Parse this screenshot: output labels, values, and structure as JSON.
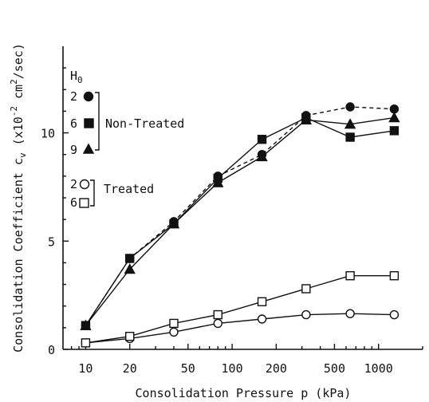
{
  "chart_data": {
    "type": "line",
    "x_scale": "log",
    "xlim": [
      7,
      2000
    ],
    "ylim": [
      0,
      14
    ],
    "xlabel": "Consolidation Pressure p (kPa)",
    "ylabel": {
      "prefix": "Consolidation Coefficient c",
      "subscript": "v",
      "unit_open": "(x10",
      "exp1": "-2",
      "unit_mid": " cm",
      "exp2": "2",
      "unit_close": "/sec)"
    },
    "x_ticks": [
      10,
      20,
      50,
      100,
      200,
      500,
      1000
    ],
    "x_tick_labels": [
      "10",
      "20",
      "50",
      "100",
      "200",
      "500",
      "1000"
    ],
    "y_ticks": [
      0,
      5,
      10
    ],
    "y_tick_labels": [
      "0",
      "5",
      "10"
    ],
    "legend": {
      "header_main": "H",
      "header_sub": "0",
      "group1_label": "Non-Treated",
      "group2_label": "Treated"
    },
    "series": [
      {
        "name": "2",
        "group": "Non-Treated",
        "marker": "circle",
        "filled": true,
        "dashed": true,
        "x": [
          10,
          20,
          40,
          80,
          160,
          320,
          640,
          1280
        ],
        "y": [
          1.1,
          4.2,
          5.9,
          8.0,
          9.0,
          10.8,
          11.2,
          11.1
        ]
      },
      {
        "name": "6",
        "group": "Non-Treated",
        "marker": "square",
        "filled": true,
        "dashed": false,
        "x": [
          10,
          20,
          40,
          80,
          160,
          320,
          640,
          1280
        ],
        "y": [
          1.1,
          4.2,
          5.8,
          7.9,
          9.7,
          10.7,
          9.8,
          10.1
        ]
      },
      {
        "name": "9",
        "group": "Non-Treated",
        "marker": "triangle",
        "filled": true,
        "dashed": false,
        "x": [
          10,
          20,
          40,
          80,
          160,
          320,
          640,
          1280
        ],
        "y": [
          1.1,
          3.7,
          5.8,
          7.7,
          8.9,
          10.6,
          10.4,
          10.7
        ]
      },
      {
        "name": "2",
        "group": "Treated",
        "marker": "circle",
        "filled": false,
        "dashed": false,
        "x": [
          10,
          20,
          40,
          80,
          160,
          320,
          640,
          1280
        ],
        "y": [
          0.3,
          0.5,
          0.8,
          1.2,
          1.4,
          1.6,
          1.65,
          1.6
        ]
      },
      {
        "name": "6",
        "group": "Treated",
        "marker": "square",
        "filled": false,
        "dashed": false,
        "x": [
          10,
          20,
          40,
          80,
          160,
          320,
          640,
          1280
        ],
        "y": [
          0.3,
          0.6,
          1.2,
          1.6,
          2.2,
          2.8,
          3.4,
          3.4
        ]
      }
    ],
    "grid": false
  }
}
